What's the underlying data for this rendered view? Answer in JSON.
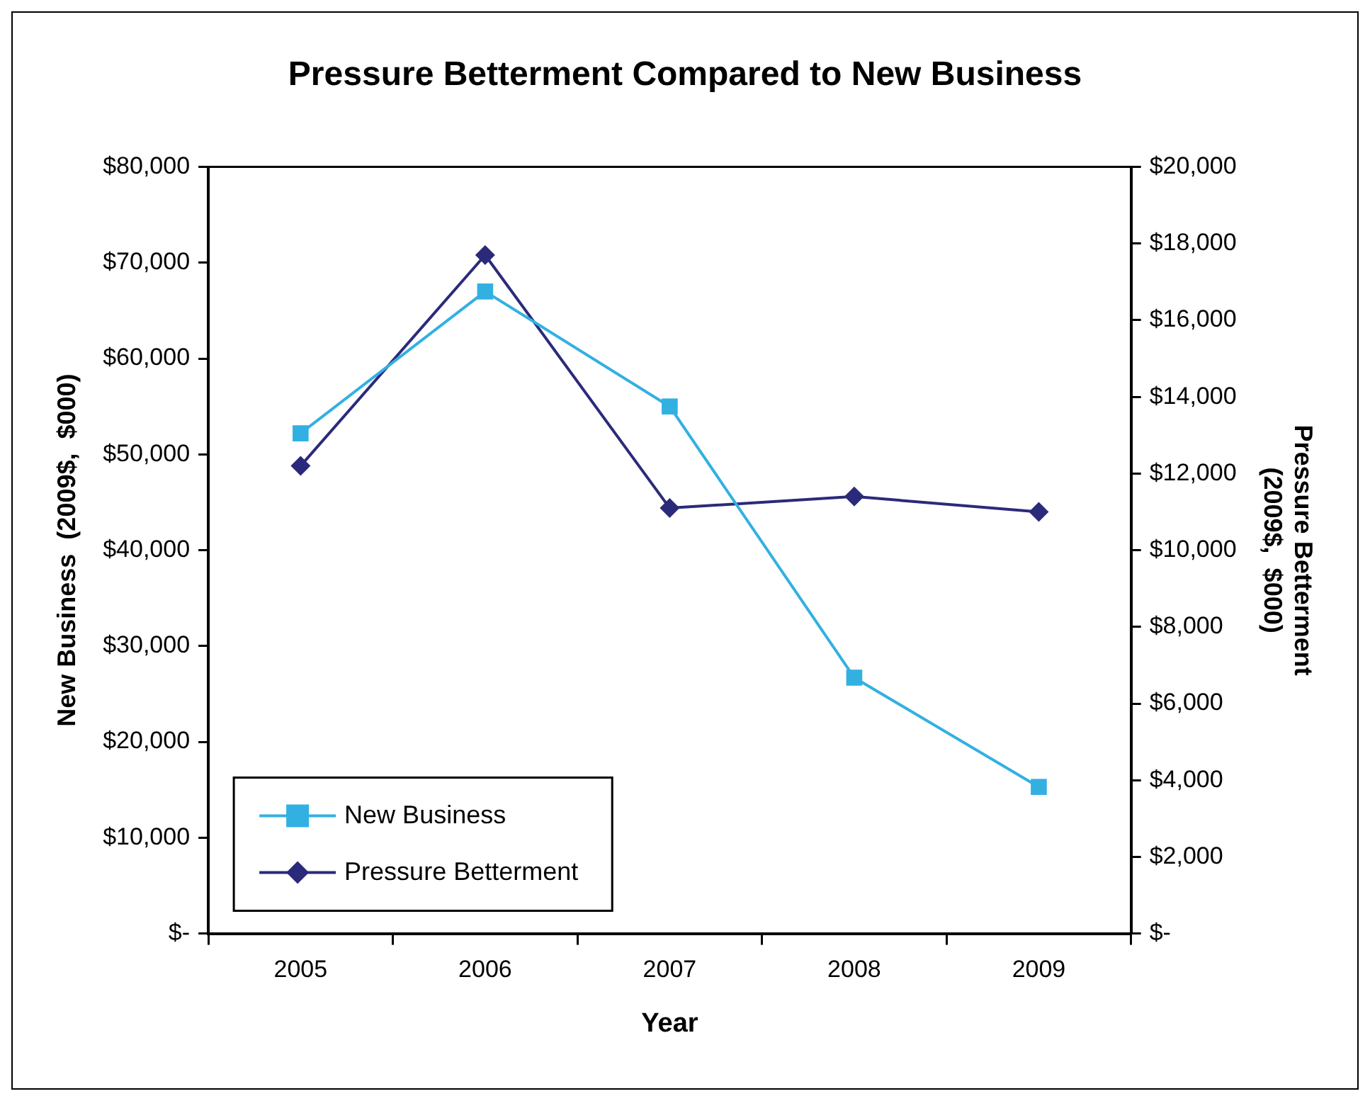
{
  "chart_data": {
    "type": "line",
    "title": "Pressure Betterment Compared to New Business",
    "xlabel": "Year",
    "ylabel": "New Business  (2009$,  $000)",
    "y2label": "Pressure Betterment\n(2009$,  $000)",
    "categories": [
      "2005",
      "2006",
      "2007",
      "2008",
      "2009"
    ],
    "series": [
      {
        "name": "New Business",
        "color": "#33b0e2",
        "marker": "square",
        "values": [
          52200,
          67000,
          55000,
          26700,
          15300
        ]
      },
      {
        "name": "Pressure Betterment",
        "color": "#2b2a7a",
        "marker": "diamond",
        "axis": "y2",
        "values": [
          12200,
          17700,
          11100,
          11400,
          11000
        ]
      }
    ],
    "ylim": [
      0,
      80000
    ],
    "yticks": [
      {
        "value": 0,
        "label": "$-"
      },
      {
        "value": 10000,
        "label": "$10,000"
      },
      {
        "value": 20000,
        "label": "$20,000"
      },
      {
        "value": 30000,
        "label": "$30,000"
      },
      {
        "value": 40000,
        "label": "$40,000"
      },
      {
        "value": 50000,
        "label": "$50,000"
      },
      {
        "value": 60000,
        "label": "$60,000"
      },
      {
        "value": 70000,
        "label": "$70,000"
      },
      {
        "value": 80000,
        "label": "$80,000"
      }
    ],
    "y2lim": [
      0,
      20000
    ],
    "y2ticks": [
      {
        "value": 0,
        "label": "$-"
      },
      {
        "value": 2000,
        "label": "$2,000"
      },
      {
        "value": 4000,
        "label": "$4,000"
      },
      {
        "value": 6000,
        "label": "$6,000"
      },
      {
        "value": 8000,
        "label": "$8,000"
      },
      {
        "value": 10000,
        "label": "$10,000"
      },
      {
        "value": 12000,
        "label": "$12,000"
      },
      {
        "value": 14000,
        "label": "$14,000"
      },
      {
        "value": 16000,
        "label": "$16,000"
      },
      {
        "value": 18000,
        "label": "$18,000"
      },
      {
        "value": 20000,
        "label": "$20,000"
      }
    ],
    "grid": false,
    "legend": "bottom left",
    "line_style": "solid"
  }
}
